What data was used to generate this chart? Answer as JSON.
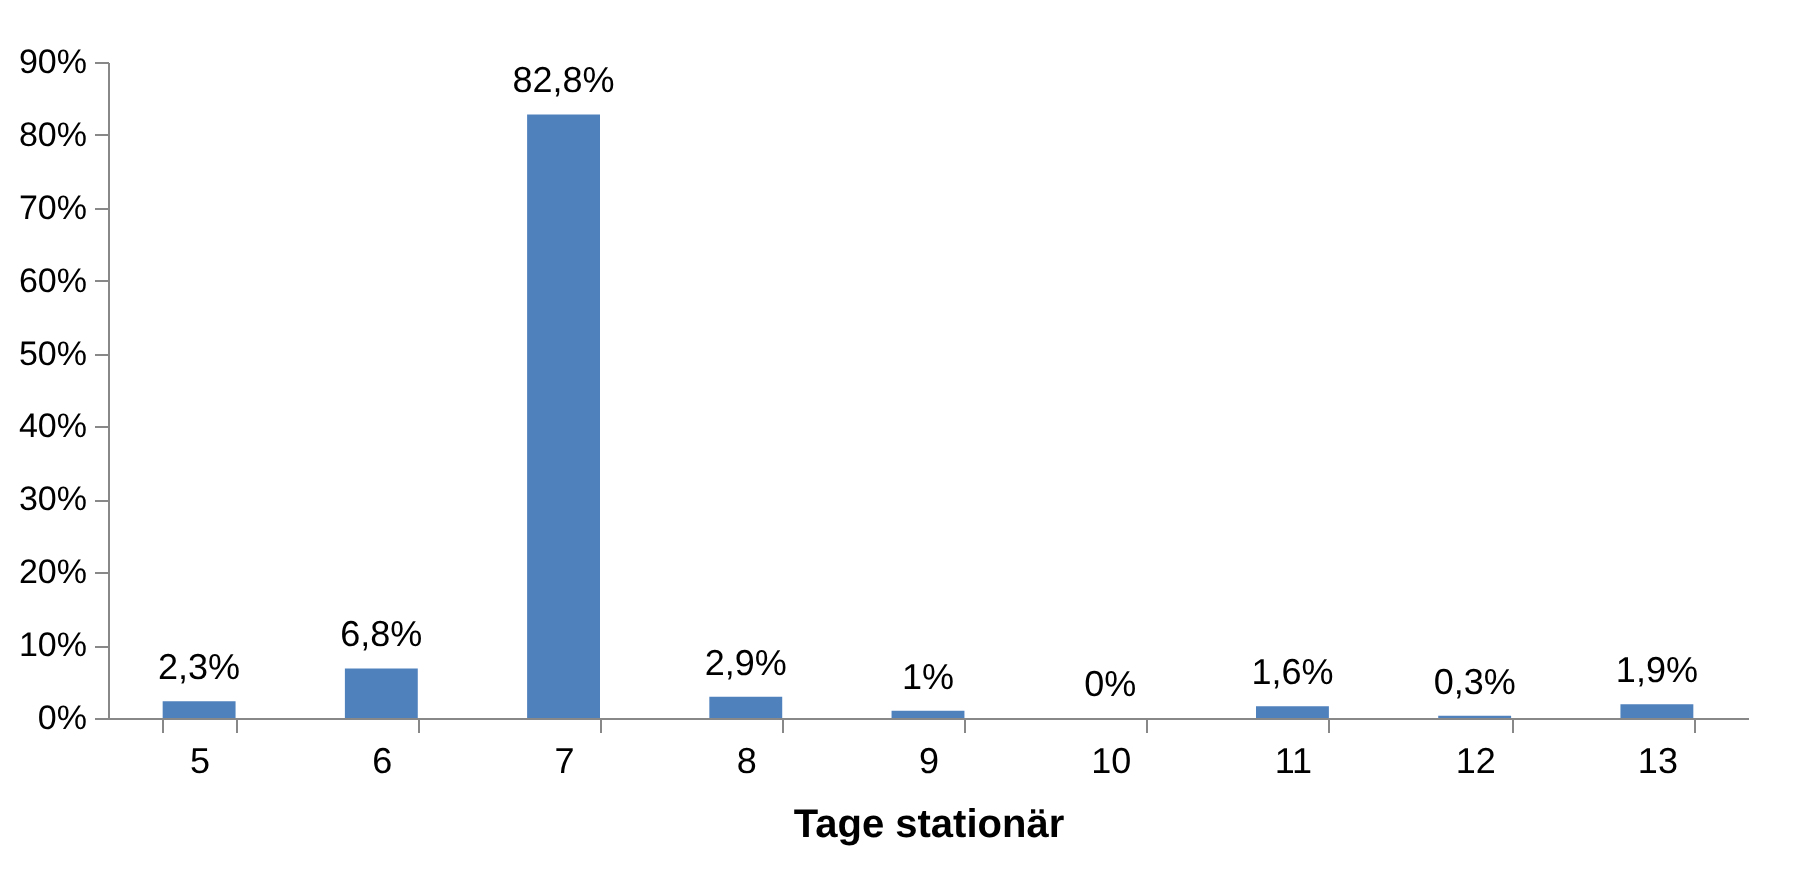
{
  "chart_data": {
    "type": "bar",
    "xlabel": "Tage stationär",
    "categories": [
      "5",
      "6",
      "7",
      "8",
      "9",
      "10",
      "11",
      "12",
      "13"
    ],
    "values": [
      2.3,
      6.8,
      82.8,
      2.9,
      1,
      0,
      1.6,
      0.3,
      1.9
    ],
    "value_labels": [
      "2,3%",
      "6,8%",
      "82,8%",
      "2,9%",
      "1%",
      "0%",
      "1,6%",
      "0,3%",
      "1,9%"
    ],
    "color": "#4f81bd",
    "ylim": [
      0,
      90
    ],
    "yticks": [
      {
        "value": 0,
        "label": "0%"
      },
      {
        "value": 10,
        "label": "10%"
      },
      {
        "value": 20,
        "label": "20%"
      },
      {
        "value": 30,
        "label": "30%"
      },
      {
        "value": 40,
        "label": "40%"
      },
      {
        "value": 50,
        "label": "50%"
      },
      {
        "value": 60,
        "label": "60%"
      },
      {
        "value": 70,
        "label": "70%"
      },
      {
        "value": 80,
        "label": "80%"
      },
      {
        "value": 90,
        "label": "90%"
      }
    ]
  }
}
